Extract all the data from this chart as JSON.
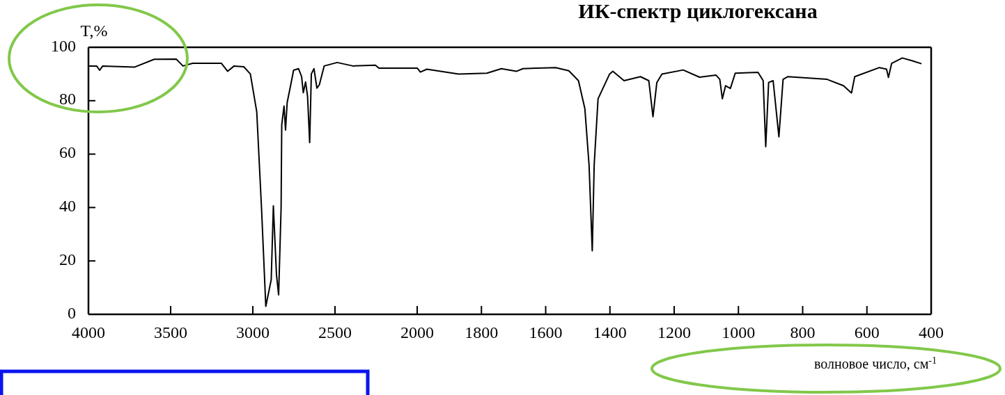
{
  "chart_data": [
    {
      "type": "line",
      "ylabel": "T,%",
      "tick_labels": true,
      "xlim": [
        4000,
        2000
      ],
      "xticks": [
        4000,
        3500,
        3000,
        2500,
        2000
      ],
      "ylim": [
        0,
        100
      ],
      "yticks": [
        0,
        20,
        40,
        60,
        80,
        100
      ],
      "marker": "none",
      "line_style": "solid",
      "series": [
        {
          "color": "#000000",
          "x": [
            4000,
            3950,
            3932,
            3913,
            3718,
            3600,
            3466,
            3425,
            3366,
            3191,
            3153,
            3114,
            3055,
            3015,
            2976,
            2947,
            2921,
            2888,
            2875,
            2856,
            2843,
            2828,
            2824,
            2810,
            2801,
            2791,
            2771,
            2752,
            2722,
            2703,
            2693,
            2679,
            2667,
            2654,
            2644,
            2628,
            2610,
            2595,
            2566,
            2487,
            2390,
            2254,
            2233,
            2000
          ],
          "values": [
            93,
            93,
            91.4,
            93,
            92.6,
            95.5,
            95.6,
            93,
            94,
            94,
            91,
            93,
            92.7,
            90,
            75.8,
            39.7,
            3,
            13,
            40.6,
            14.8,
            7.3,
            39.7,
            71,
            78,
            69,
            79.3,
            85.4,
            91.4,
            92,
            89,
            83,
            87,
            81.7,
            64.3,
            90,
            92,
            84.7,
            86,
            93,
            94.3,
            93,
            93.3,
            92.2,
            92.2
          ]
        }
      ]
    },
    {
      "type": "line",
      "title": "ИК-спектр циклогексана",
      "xlabel": "волновое число, см$^{-1}$",
      "tick_labels": "x",
      "xlim": [
        2000,
        400
      ],
      "xticks": [
        1800,
        1600,
        1400,
        1200,
        1000,
        800,
        600,
        400
      ],
      "ylim": [
        0,
        100
      ],
      "marker": "none",
      "line_style": "solid",
      "series": [
        {
          "color": "#000000",
          "x": [
            2000,
            1990,
            1970,
            1871,
            1783,
            1738,
            1691,
            1671,
            1569,
            1528,
            1498,
            1478,
            1465,
            1455,
            1449,
            1437,
            1401,
            1391,
            1356,
            1305,
            1279,
            1266,
            1254,
            1238,
            1172,
            1121,
            1070,
            1058,
            1050,
            1040,
            1025,
            1010,
            939,
            923,
            915,
            906,
            892,
            874,
            861,
            846,
            724,
            673,
            648,
            638,
            561,
            539,
            533,
            523,
            490,
            460,
            432
          ],
          "values": [
            92.2,
            90.7,
            91.8,
            90,
            90.3,
            92,
            91,
            92,
            92.4,
            91.2,
            87.5,
            77,
            56,
            23.8,
            56,
            80.7,
            90,
            91,
            87.5,
            89,
            87.5,
            74,
            86.8,
            90,
            91.5,
            88.8,
            89.6,
            88,
            80.7,
            85.6,
            84.6,
            90.3,
            90.6,
            87.5,
            62.8,
            86.8,
            87.5,
            66.5,
            88,
            89,
            88,
            85.6,
            82.9,
            89,
            92.4,
            91.8,
            88.7,
            94,
            96,
            95,
            93.9
          ]
        }
      ]
    }
  ]
}
